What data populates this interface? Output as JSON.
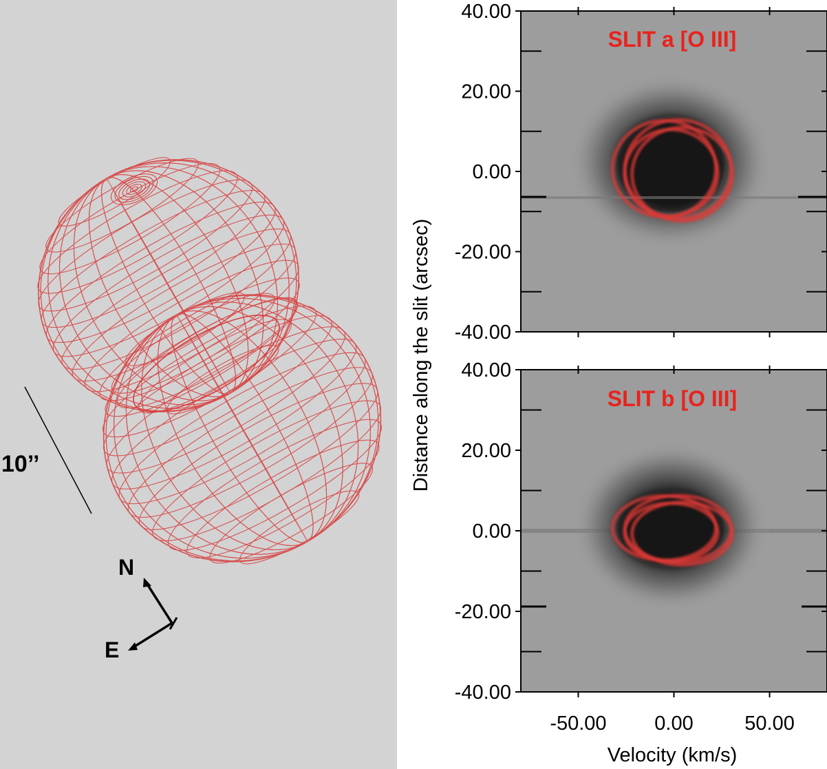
{
  "model": {
    "scale_label": "10’’",
    "north_label": "N",
    "east_label": "E",
    "wireframe_color": "#d83c3c",
    "background_color": "#d3d3d3"
  },
  "pv_panels": [
    {
      "title": "SLIT a [O III]"
    },
    {
      "title": "SLIT b [O III]"
    }
  ],
  "chart_data": {
    "type": "heatmap",
    "xlabel": "Velocity (km/s)",
    "ylabel": "Distance along the slit (arcsec)",
    "xlim": [
      -80,
      80
    ],
    "ylim": [
      -40,
      40
    ],
    "x_ticks": [
      "-50.00",
      "0.00",
      "50.00"
    ],
    "y_ticks": [
      "40.00",
      "20.00",
      "0.00",
      "-20.00",
      "-40.00"
    ],
    "title_color": "#e8231e",
    "panels": [
      {
        "title": "SLIT a [O III]",
        "ring_center": [
          0,
          0
        ],
        "ring_radius_kms": 27,
        "ring_radius_arcsec": 12
      },
      {
        "title": "SLIT b [O III]",
        "ring_center": [
          0,
          0
        ],
        "ring_radius_kms": 27,
        "ring_radius_arcsec": 8
      }
    ]
  }
}
